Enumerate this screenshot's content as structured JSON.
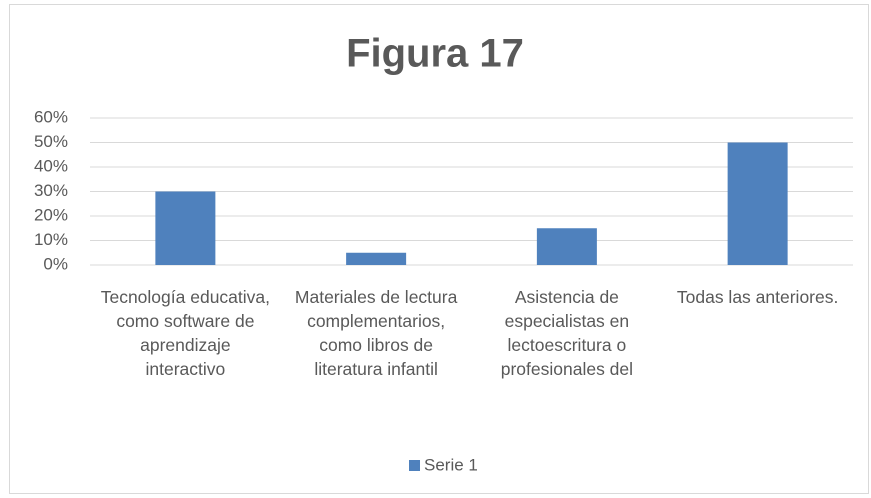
{
  "chart_data": {
    "type": "bar",
    "title": "Figura 17",
    "categories": [
      "Tecnología educativa, como software de aprendizaje interactivo",
      "Materiales de lectura complementarios, como libros de literatura infantil",
      "Asistencia de especialistas en lectoescritura o profesionales del",
      "Todas las anteriores."
    ],
    "series": [
      {
        "name": "Serie 1",
        "color": "#4f81bd",
        "values": [
          30,
          5,
          15,
          50
        ]
      }
    ],
    "ylim": [
      0,
      60
    ],
    "yticks": [
      {
        "value": 0,
        "label": "0%"
      },
      {
        "value": 10,
        "label": "10%"
      },
      {
        "value": 20,
        "label": "20%"
      },
      {
        "value": 30,
        "label": "30%"
      },
      {
        "value": 40,
        "label": "40%"
      },
      {
        "value": 50,
        "label": "50%"
      },
      {
        "value": 60,
        "label": "60%"
      }
    ],
    "grid": true,
    "legend": "bottom"
  }
}
